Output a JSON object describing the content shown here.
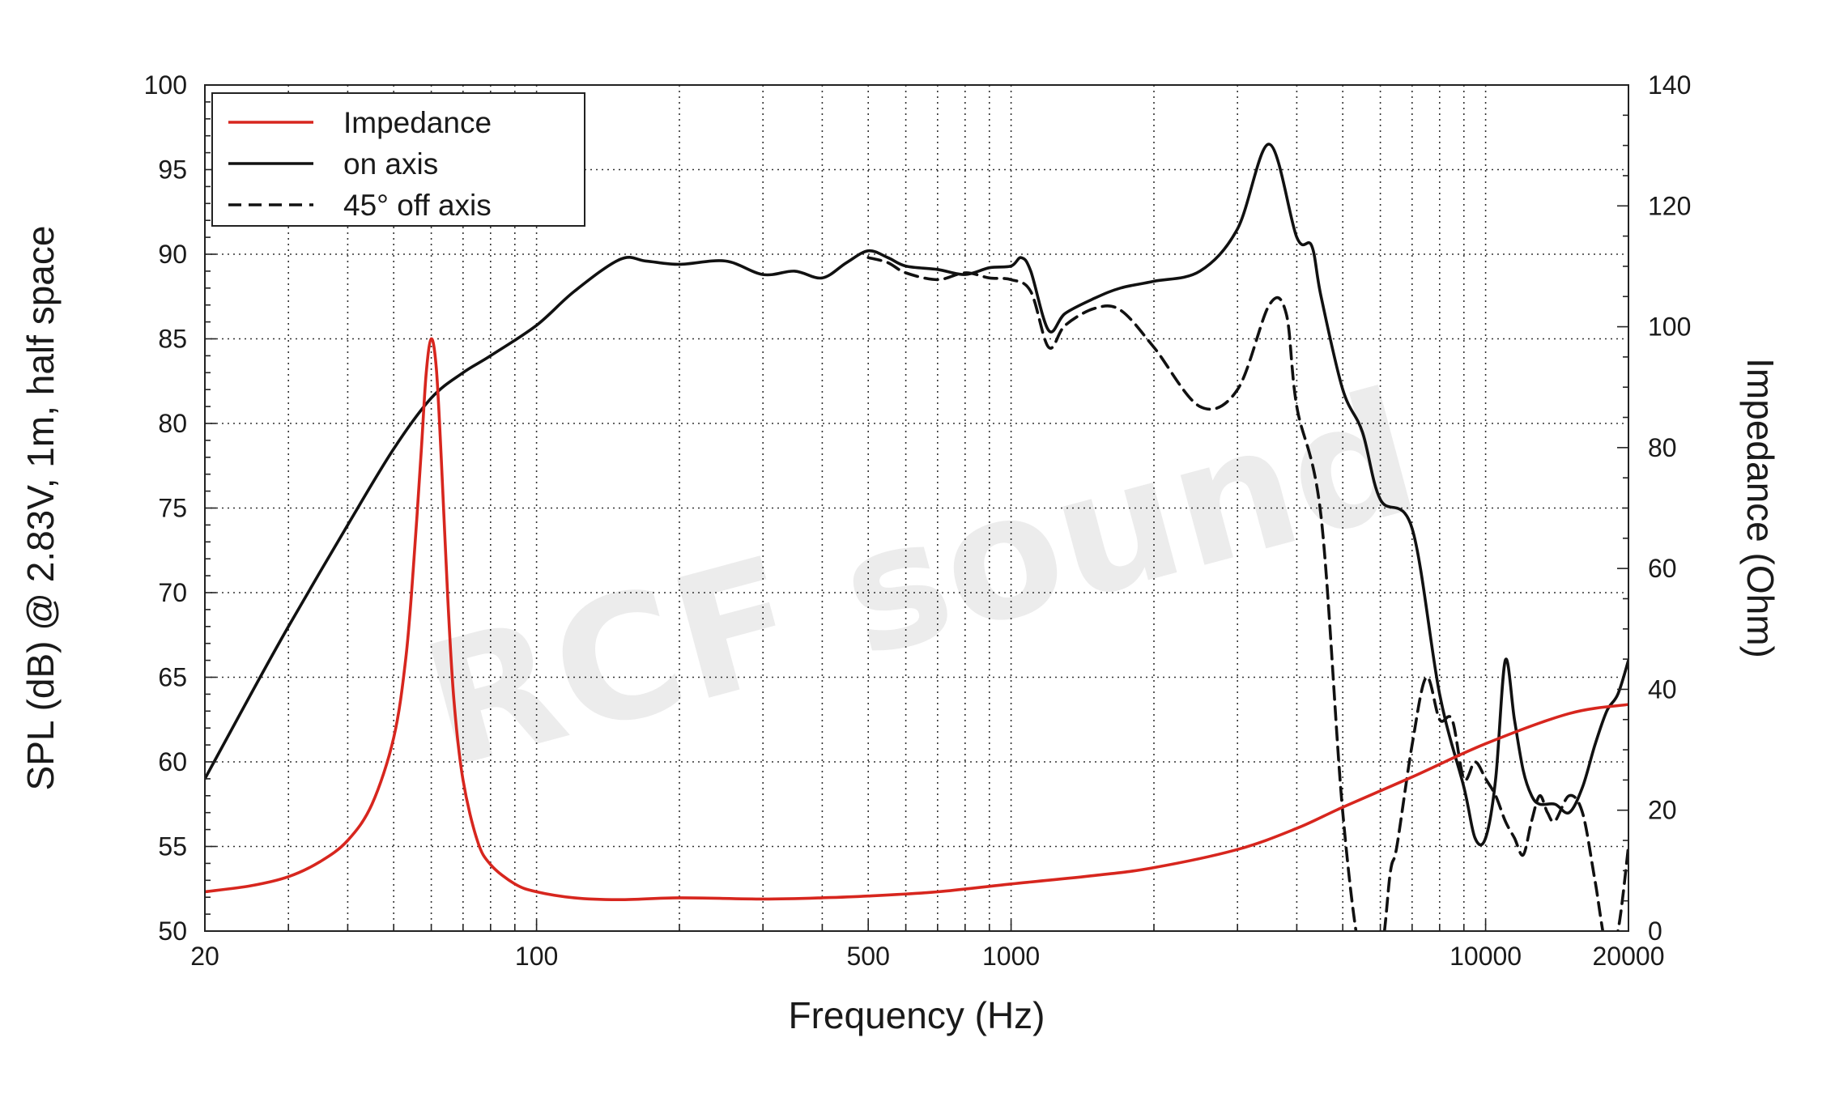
{
  "chart_data": {
    "type": "line",
    "watermark": "RCF sound",
    "xlabel": "Frequency (Hz)",
    "ylabel": "SPL (dB) @ 2.83V, 1m, half space",
    "y2label": "Impedance (Ohm)",
    "xscale": "log",
    "xlim": [
      20,
      20000
    ],
    "ylim": [
      50,
      100
    ],
    "y2lim": [
      0,
      140
    ],
    "xticks": [
      20,
      100,
      500,
      1000,
      10000,
      20000
    ],
    "xtick_labels": [
      "20",
      "100",
      "500",
      "1000",
      "10000",
      "20000"
    ],
    "yticks": [
      50,
      55,
      60,
      65,
      70,
      75,
      80,
      85,
      90,
      95,
      100
    ],
    "yticks_labels": [
      "50",
      "55",
      "60",
      "65",
      "70",
      "75",
      "80",
      "85",
      "90",
      "95",
      "100"
    ],
    "y2ticks": [
      0,
      20,
      40,
      60,
      80,
      100,
      120,
      140
    ],
    "y2ticks_labels": [
      "0",
      "20",
      "40",
      "60",
      "80",
      "100",
      "120",
      "140"
    ],
    "grid": true,
    "legend_position": "top-left",
    "series": [
      {
        "name": "Impedance",
        "axis": "right",
        "color": "#d7261e",
        "dash": "solid",
        "x": [
          20,
          25,
          30,
          35,
          40,
          45,
          50,
          53,
          55,
          57,
          58.5,
          60,
          61.5,
          63,
          65,
          67,
          70,
          75,
          80,
          90,
          100,
          120,
          150,
          200,
          300,
          400,
          500,
          700,
          1000,
          1500,
          2000,
          3000,
          4000,
          5000,
          7000,
          10000,
          15000,
          20000
        ],
        "y": [
          6.5,
          7.5,
          9,
          11.5,
          15,
          21,
          32,
          45,
          60,
          78,
          92,
          98,
          93,
          78,
          55,
          38,
          25,
          15,
          11,
          7.8,
          6.5,
          5.5,
          5.2,
          5.5,
          5.3,
          5.5,
          5.8,
          6.5,
          7.8,
          9.2,
          10.5,
          13.5,
          17,
          20.5,
          25.5,
          31,
          36,
          37.5
        ]
      },
      {
        "name": "on axis",
        "axis": "left",
        "color": "#111111",
        "dash": "solid",
        "x": [
          20,
          25,
          30,
          40,
          50,
          60,
          70,
          80,
          100,
          120,
          150,
          170,
          200,
          250,
          300,
          350,
          400,
          450,
          500,
          550,
          600,
          700,
          800,
          900,
          1000,
          1050,
          1100,
          1200,
          1300,
          1500,
          1700,
          2000,
          2500,
          3000,
          3500,
          4000,
          4300,
          4500,
          5000,
          5500,
          6000,
          7000,
          8000,
          9000,
          9500,
          10000,
          10500,
          11000,
          11500,
          12000,
          12500,
          13000,
          14000,
          15000,
          16000,
          17000,
          18000,
          19000,
          20000
        ],
        "y": [
          59,
          64,
          68,
          74,
          78.5,
          81.5,
          83,
          84,
          85.8,
          87.8,
          89.7,
          89.6,
          89.4,
          89.6,
          88.8,
          89,
          88.6,
          89.5,
          90.2,
          89.8,
          89.3,
          89.1,
          88.8,
          89.2,
          89.3,
          89.8,
          89,
          85.5,
          86.5,
          87.4,
          88,
          88.4,
          89,
          91.5,
          96.5,
          91,
          90.5,
          87.5,
          82,
          79.5,
          75.5,
          73.8,
          64,
          58.5,
          55.5,
          55.5,
          59,
          66,
          62.5,
          59.5,
          58,
          57.5,
          57.5,
          57,
          58.5,
          61,
          63,
          64,
          66
        ]
      },
      {
        "name": "45° off axis",
        "axis": "left",
        "color": "#111111",
        "dash": "dashed",
        "x": [
          500,
          550,
          600,
          700,
          800,
          900,
          1000,
          1100,
          1200,
          1300,
          1500,
          1700,
          2000,
          2500,
          3000,
          3500,
          3800,
          4000,
          4500,
          5000,
          5500,
          6000,
          6300,
          6500,
          7000,
          7500,
          8000,
          8500,
          9000,
          9500,
          10000,
          10500,
          11000,
          11500,
          12000,
          12500,
          13000,
          13500,
          14000,
          15000,
          16000,
          17000,
          18000,
          19000,
          20000
        ],
        "y": [
          89.8,
          89.5,
          88.9,
          88.5,
          88.9,
          88.6,
          88.5,
          87.8,
          84.5,
          85.8,
          86.8,
          86.7,
          84.5,
          81,
          82,
          87,
          86.5,
          81,
          74.5,
          57,
          48,
          48.5,
          53.5,
          55,
          61,
          65,
          62.5,
          62.5,
          59,
          60,
          59,
          58,
          56.5,
          55.5,
          54.5,
          56.5,
          58,
          57,
          56.5,
          58,
          57,
          53,
          49,
          50,
          55
        ]
      }
    ]
  }
}
